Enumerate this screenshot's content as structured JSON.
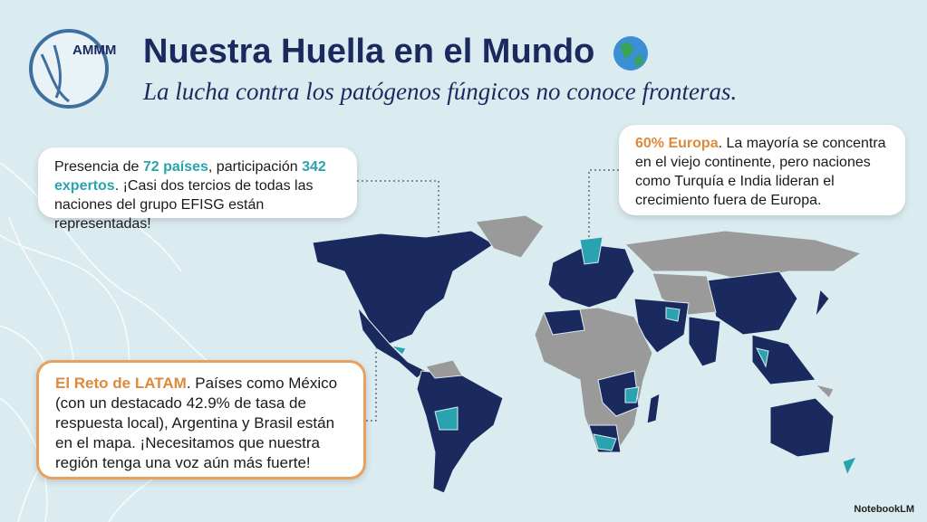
{
  "header": {
    "logo_text": "AMMM",
    "title": "Nuestra Huella en el Mundo",
    "subtitle": "La lucha contra los patógenos fúngicos no conoce fronteras."
  },
  "callouts": {
    "presence": [
      "Presencia de ",
      "72 países",
      ", participación ",
      "342 expertos",
      ". ¡Casi dos tercios de todas las naciones del grupo EFISG están representadas!"
    ],
    "europe": [
      "60% Europa",
      ". La mayoría se concentra en el viejo continente, pero naciones como Turquía e India lideran el crecimiento fuera de Europa."
    ],
    "latam": [
      "El Reto de LATAM",
      ". Países como México (con un destacado 42.9% de tasa de respuesta local), Argentina y Brasil están en el mapa. ¡Necesitamos que nuestra región tenga una voz aún más fuerte!"
    ]
  },
  "footer": {
    "brand": "NotebookLM"
  }
}
